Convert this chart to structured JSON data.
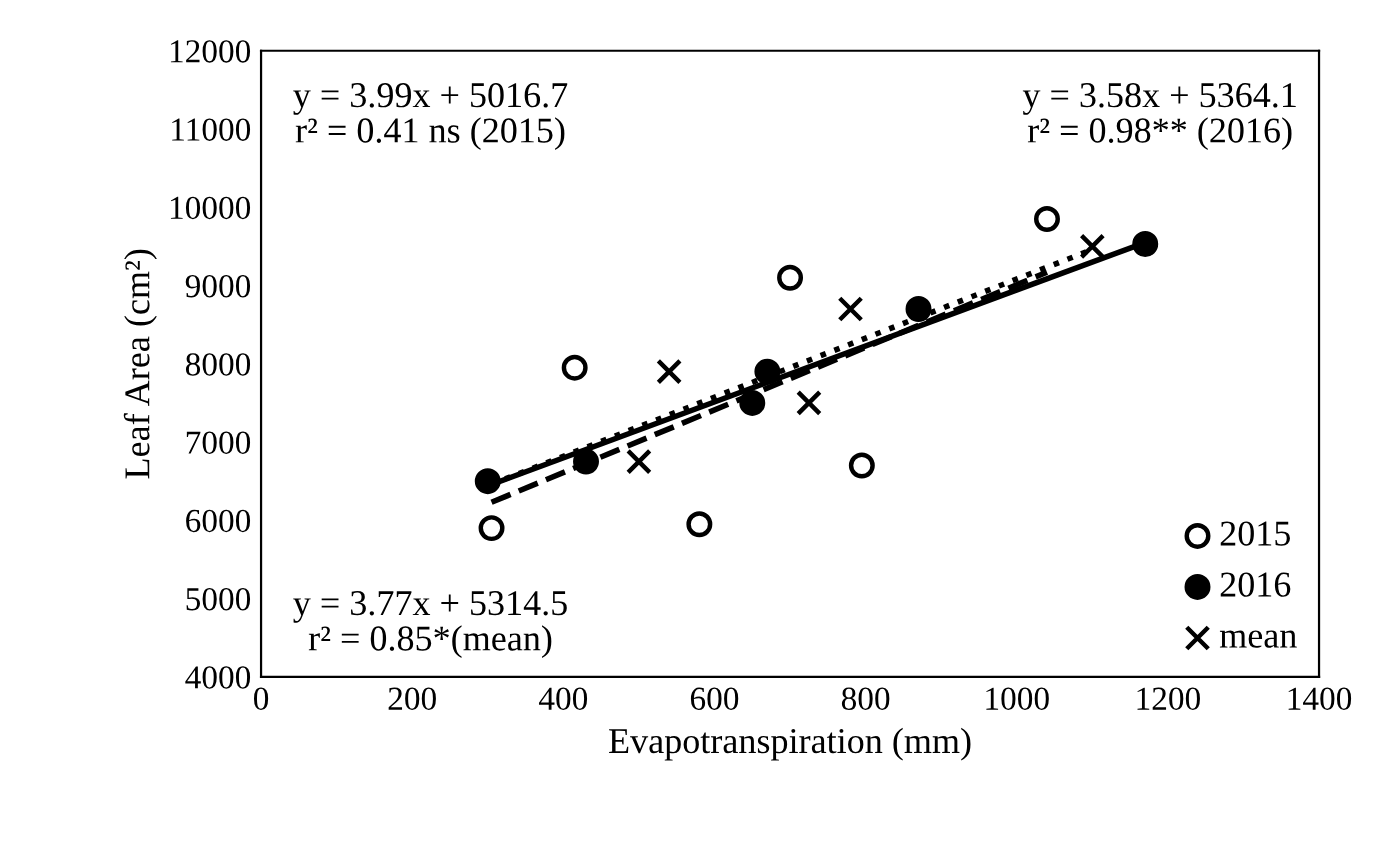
{
  "chart_data": {
    "type": "scatter",
    "xlabel": "Evapotranspiration (mm)",
    "ylabel": "Leaf Area (cm²)",
    "xlim": [
      0,
      1400
    ],
    "xticks": [
      0,
      200,
      400,
      600,
      800,
      1000,
      1200,
      1400
    ],
    "ylim": [
      4000,
      12000
    ],
    "yticks": [
      4000,
      5000,
      6000,
      7000,
      8000,
      9000,
      10000,
      11000,
      12000
    ],
    "grid": false,
    "legend": "bottom right",
    "series": [
      {
        "name": "2015",
        "color": "#ffffff",
        "marker": "circle",
        "x": [
          305,
          415,
          580,
          700,
          795,
          1040
        ],
        "values": [
          5900,
          7950,
          5950,
          9100,
          6700,
          9850
        ]
      },
      {
        "name": "2016",
        "color": "#000000",
        "marker": "circle",
        "x": [
          300,
          430,
          650,
          670,
          870,
          1170
        ],
        "values": [
          6500,
          6750,
          7500,
          7900,
          8700,
          9530
        ]
      },
      {
        "name": "mean",
        "color": "#000000",
        "marker": "cross",
        "x": [
          500,
          540,
          725,
          780,
          1100
        ],
        "values": [
          6750,
          7900,
          7500,
          8700,
          9500
        ]
      },
      {
        "type": "line",
        "color": "#000000",
        "line_style": "dashed",
        "x": [
          305,
          1040
        ],
        "values": [
          6230,
          9170
        ]
      },
      {
        "type": "line",
        "color": "#000000",
        "line_style": "solid",
        "x": [
          300,
          1170
        ],
        "values": [
          6440,
          9550
        ]
      },
      {
        "type": "line",
        "color": "#000000",
        "line_style": "dotted",
        "x": [
          305,
          1100
        ],
        "values": [
          6460,
          9460
        ]
      }
    ],
    "annotations": [
      "y = 3.99x + 5016.7\nr² = 0.41 ns (2015)",
      "y = 3.58x + 5364.1\nr² = 0.98** (2016)",
      "y = 3.77x + 5314.5\nr² = 0.85*(mean)"
    ]
  }
}
